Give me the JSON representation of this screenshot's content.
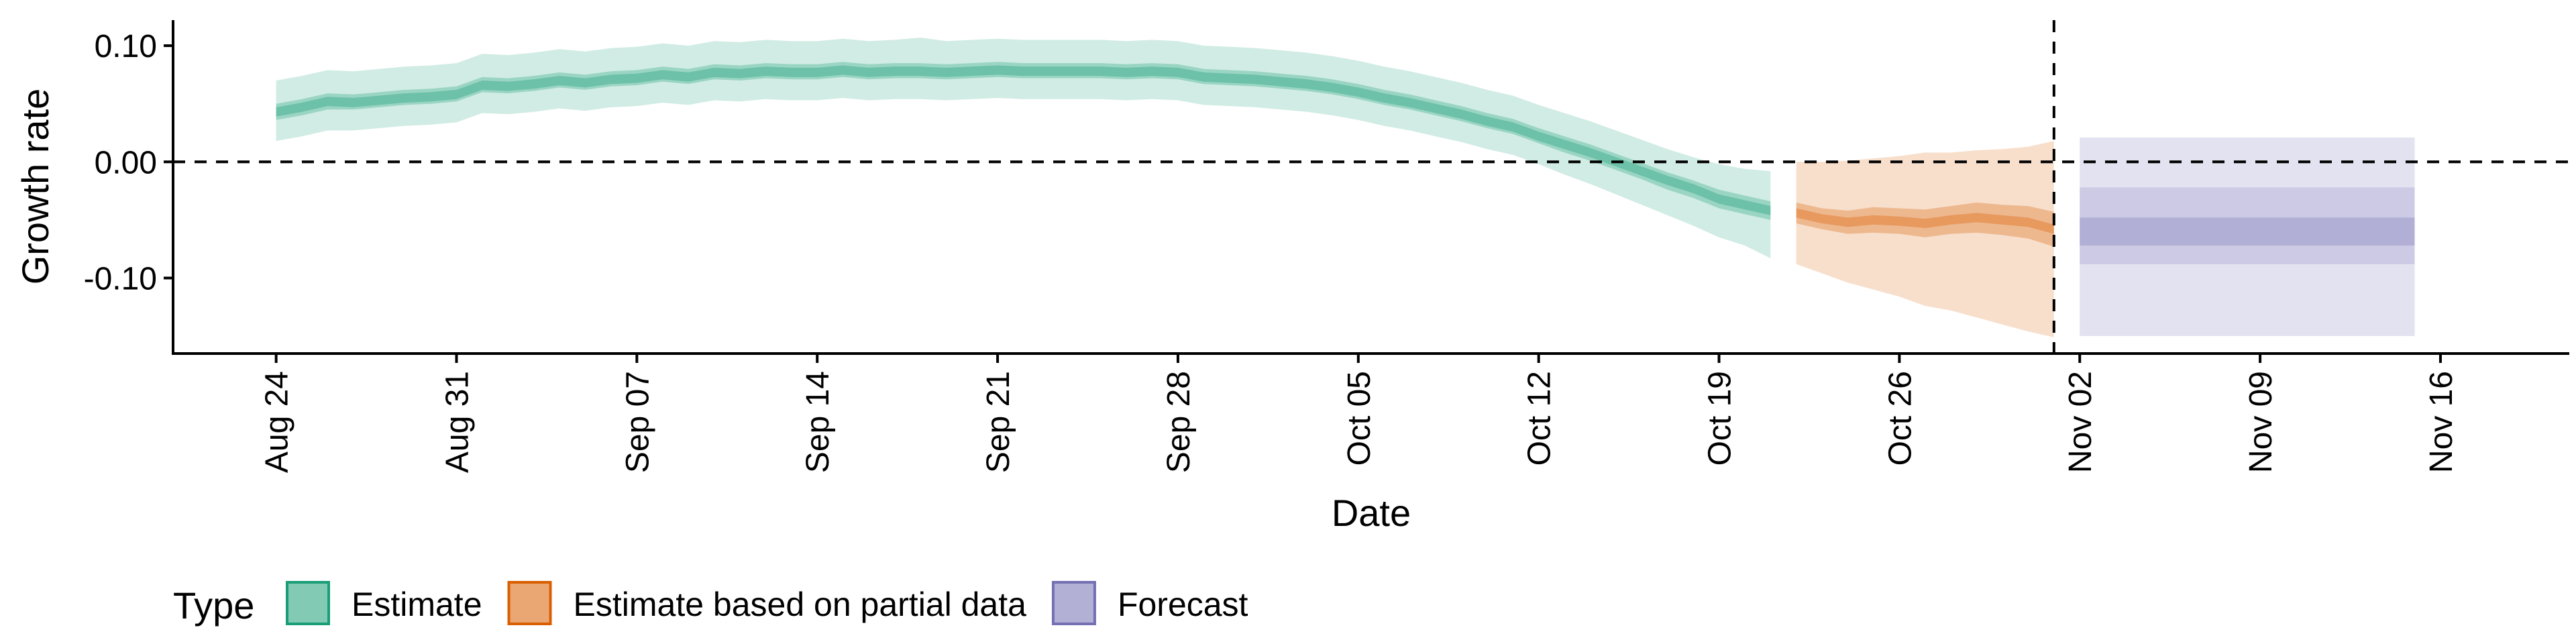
{
  "chart_data": {
    "type": "area",
    "title": "",
    "xlabel": "Date",
    "ylabel": "Growth rate",
    "x_domain": [
      "2020-08-20",
      "2020-11-21"
    ],
    "ylim": [
      -0.165,
      0.122
    ],
    "x_ticks": [
      {
        "date": "2020-08-24",
        "label": "Aug 24"
      },
      {
        "date": "2020-08-31",
        "label": "Aug 31"
      },
      {
        "date": "2020-09-07",
        "label": "Sep 07"
      },
      {
        "date": "2020-09-14",
        "label": "Sep 14"
      },
      {
        "date": "2020-09-21",
        "label": "Sep 21"
      },
      {
        "date": "2020-09-28",
        "label": "Sep 28"
      },
      {
        "date": "2020-10-05",
        "label": "Oct 05"
      },
      {
        "date": "2020-10-12",
        "label": "Oct 12"
      },
      {
        "date": "2020-10-19",
        "label": "Oct 19"
      },
      {
        "date": "2020-10-26",
        "label": "Oct 26"
      },
      {
        "date": "2020-11-02",
        "label": "Nov 02"
      },
      {
        "date": "2020-11-09",
        "label": "Nov 09"
      },
      {
        "date": "2020-11-16",
        "label": "Nov 16"
      }
    ],
    "y_ticks": [
      {
        "value": 0.1,
        "label": "0.10"
      },
      {
        "value": 0.0,
        "label": "0.00"
      },
      {
        "value": -0.1,
        "label": "-0.10"
      }
    ],
    "reference_lines": {
      "hline": 0.0,
      "vline": "2020-11-01"
    },
    "legend": {
      "title": "Type",
      "position": "bottom"
    },
    "series": [
      {
        "name": "Estimate",
        "color": "#1b9e77",
        "x": [
          "2020-08-24",
          "2020-08-25",
          "2020-08-26",
          "2020-08-27",
          "2020-08-28",
          "2020-08-29",
          "2020-08-30",
          "2020-08-31",
          "2020-09-01",
          "2020-09-02",
          "2020-09-03",
          "2020-09-04",
          "2020-09-05",
          "2020-09-06",
          "2020-09-07",
          "2020-09-08",
          "2020-09-09",
          "2020-09-10",
          "2020-09-11",
          "2020-09-12",
          "2020-09-13",
          "2020-09-14",
          "2020-09-15",
          "2020-09-16",
          "2020-09-17",
          "2020-09-18",
          "2020-09-19",
          "2020-09-20",
          "2020-09-21",
          "2020-09-22",
          "2020-09-23",
          "2020-09-24",
          "2020-09-25",
          "2020-09-26",
          "2020-09-27",
          "2020-09-28",
          "2020-09-29",
          "2020-09-30",
          "2020-10-01",
          "2020-10-02",
          "2020-10-03",
          "2020-10-04",
          "2020-10-05",
          "2020-10-06",
          "2020-10-07",
          "2020-10-08",
          "2020-10-09",
          "2020-10-10",
          "2020-10-11",
          "2020-10-12",
          "2020-10-13",
          "2020-10-14",
          "2020-10-15",
          "2020-10-16",
          "2020-10-17",
          "2020-10-18",
          "2020-10-19",
          "2020-10-20",
          "2020-10-21"
        ],
        "median": [
          0.043,
          0.047,
          0.052,
          0.051,
          0.053,
          0.055,
          0.056,
          0.058,
          0.066,
          0.065,
          0.067,
          0.07,
          0.068,
          0.071,
          0.072,
          0.075,
          0.073,
          0.077,
          0.076,
          0.078,
          0.077,
          0.077,
          0.079,
          0.077,
          0.078,
          0.078,
          0.077,
          0.078,
          0.079,
          0.078,
          0.078,
          0.078,
          0.078,
          0.077,
          0.078,
          0.077,
          0.073,
          0.072,
          0.071,
          0.069,
          0.067,
          0.064,
          0.06,
          0.055,
          0.051,
          0.046,
          0.041,
          0.035,
          0.03,
          0.022,
          0.015,
          0.008,
          0.0,
          -0.008,
          -0.016,
          -0.023,
          -0.032,
          -0.037,
          -0.042
        ],
        "ci20_lower": [
          0.036,
          0.04,
          0.045,
          0.045,
          0.047,
          0.049,
          0.05,
          0.052,
          0.06,
          0.059,
          0.061,
          0.064,
          0.062,
          0.065,
          0.066,
          0.069,
          0.067,
          0.071,
          0.07,
          0.072,
          0.071,
          0.071,
          0.073,
          0.071,
          0.072,
          0.072,
          0.071,
          0.072,
          0.073,
          0.072,
          0.072,
          0.072,
          0.072,
          0.071,
          0.072,
          0.071,
          0.067,
          0.066,
          0.065,
          0.063,
          0.061,
          0.058,
          0.054,
          0.049,
          0.045,
          0.04,
          0.035,
          0.029,
          0.024,
          0.016,
          0.008,
          0.001,
          -0.007,
          -0.015,
          -0.024,
          -0.031,
          -0.04,
          -0.045,
          -0.05
        ],
        "ci20_upper": [
          0.05,
          0.054,
          0.059,
          0.058,
          0.06,
          0.062,
          0.063,
          0.065,
          0.073,
          0.072,
          0.074,
          0.077,
          0.075,
          0.078,
          0.079,
          0.082,
          0.08,
          0.084,
          0.083,
          0.085,
          0.084,
          0.084,
          0.086,
          0.084,
          0.085,
          0.085,
          0.084,
          0.085,
          0.086,
          0.085,
          0.085,
          0.085,
          0.085,
          0.084,
          0.085,
          0.084,
          0.08,
          0.079,
          0.078,
          0.076,
          0.074,
          0.071,
          0.067,
          0.062,
          0.058,
          0.053,
          0.048,
          0.042,
          0.037,
          0.029,
          0.022,
          0.015,
          0.007,
          -0.001,
          -0.009,
          -0.016,
          -0.024,
          -0.029,
          -0.034
        ],
        "ci90_lower": [
          0.018,
          0.022,
          0.027,
          0.027,
          0.029,
          0.031,
          0.032,
          0.034,
          0.042,
          0.041,
          0.043,
          0.046,
          0.044,
          0.047,
          0.048,
          0.051,
          0.049,
          0.053,
          0.052,
          0.054,
          0.053,
          0.053,
          0.055,
          0.053,
          0.054,
          0.054,
          0.053,
          0.054,
          0.055,
          0.054,
          0.054,
          0.054,
          0.054,
          0.053,
          0.054,
          0.053,
          0.049,
          0.048,
          0.047,
          0.045,
          0.043,
          0.04,
          0.036,
          0.031,
          0.027,
          0.022,
          0.017,
          0.011,
          0.006,
          -0.002,
          -0.011,
          -0.019,
          -0.028,
          -0.037,
          -0.046,
          -0.055,
          -0.065,
          -0.072,
          -0.083
        ],
        "ci90_upper": [
          0.07,
          0.074,
          0.079,
          0.078,
          0.08,
          0.082,
          0.083,
          0.085,
          0.093,
          0.092,
          0.094,
          0.097,
          0.095,
          0.098,
          0.099,
          0.102,
          0.1,
          0.104,
          0.103,
          0.105,
          0.104,
          0.104,
          0.106,
          0.104,
          0.105,
          0.107,
          0.104,
          0.105,
          0.106,
          0.105,
          0.105,
          0.105,
          0.105,
          0.104,
          0.105,
          0.104,
          0.1,
          0.099,
          0.098,
          0.096,
          0.094,
          0.091,
          0.087,
          0.082,
          0.078,
          0.073,
          0.068,
          0.062,
          0.057,
          0.049,
          0.042,
          0.035,
          0.027,
          0.019,
          0.011,
          0.004,
          -0.002,
          -0.006,
          -0.008
        ]
      },
      {
        "name": "Estimate based on partial data",
        "color": "#d95f02",
        "x": [
          "2020-10-22",
          "2020-10-23",
          "2020-10-24",
          "2020-10-25",
          "2020-10-26",
          "2020-10-27",
          "2020-10-28",
          "2020-10-29",
          "2020-10-30",
          "2020-10-31",
          "2020-11-01"
        ],
        "median": [
          -0.044,
          -0.049,
          -0.052,
          -0.05,
          -0.051,
          -0.053,
          -0.05,
          -0.048,
          -0.05,
          -0.052,
          -0.058
        ],
        "ci20_lower": [
          -0.053,
          -0.058,
          -0.062,
          -0.061,
          -0.062,
          -0.065,
          -0.062,
          -0.061,
          -0.063,
          -0.066,
          -0.073
        ],
        "ci20_upper": [
          -0.035,
          -0.04,
          -0.042,
          -0.039,
          -0.04,
          -0.041,
          -0.038,
          -0.035,
          -0.037,
          -0.038,
          -0.043
        ],
        "ci90_lower": [
          -0.088,
          -0.096,
          -0.104,
          -0.11,
          -0.116,
          -0.124,
          -0.128,
          -0.134,
          -0.14,
          -0.146,
          -0.151
        ],
        "ci90_upper": [
          0.0,
          0.0,
          0.001,
          0.003,
          0.005,
          0.008,
          0.008,
          0.01,
          0.011,
          0.013,
          0.018
        ]
      },
      {
        "name": "Forecast",
        "color": "#7570b3",
        "x": [
          "2020-11-02",
          "2020-11-15"
        ],
        "median": [
          -0.06,
          -0.06
        ],
        "ci20_lower": [
          -0.072,
          -0.072
        ],
        "ci20_upper": [
          -0.048,
          -0.048
        ],
        "ci50_lower": [
          -0.088,
          -0.088
        ],
        "ci50_upper": [
          -0.022,
          -0.022
        ],
        "ci90_lower": [
          -0.15,
          -0.15
        ],
        "ci90_upper": [
          0.021,
          0.021
        ]
      }
    ]
  }
}
